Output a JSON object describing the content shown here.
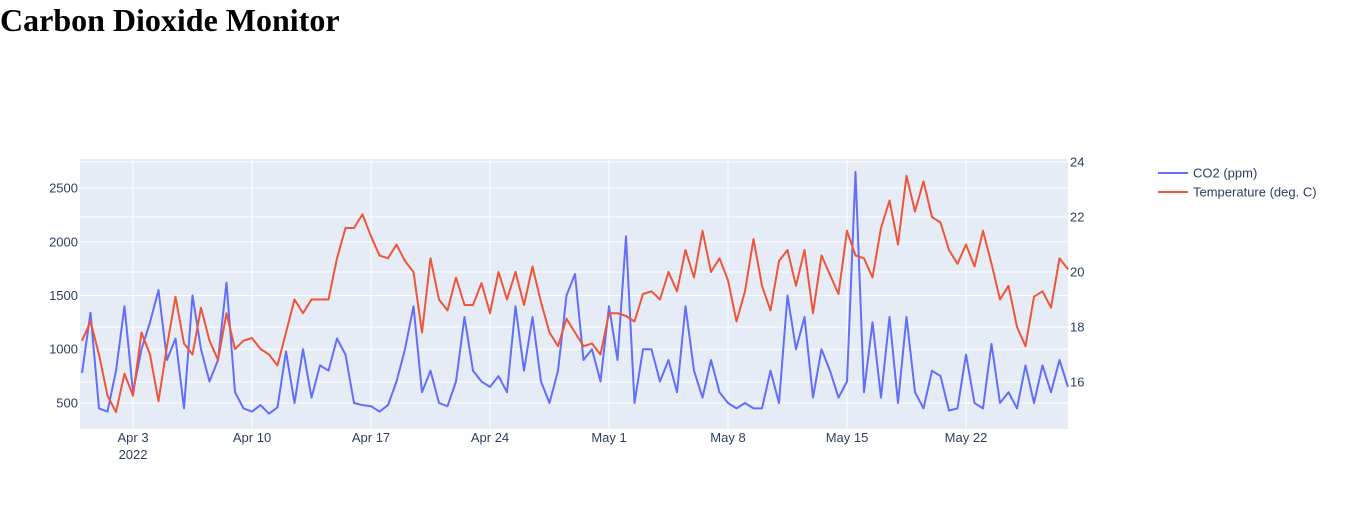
{
  "page": {
    "title": "Carbon Dioxide Monitor"
  },
  "chart_data": {
    "type": "line",
    "title": "",
    "x_start": "2022-03-31",
    "x_step_days": 0.5,
    "x_range_days_from_start": [
      -0.12,
      58.0
    ],
    "xticks": [
      {
        "day": 3,
        "label": "Apr 3",
        "sublabel": "2022"
      },
      {
        "day": 10,
        "label": "Apr 10"
      },
      {
        "day": 17,
        "label": "Apr 17"
      },
      {
        "day": 24,
        "label": "Apr 24"
      },
      {
        "day": 31,
        "label": "May 1"
      },
      {
        "day": 38,
        "label": "May 8"
      },
      {
        "day": 45,
        "label": "May 15"
      },
      {
        "day": 52,
        "label": "May 22"
      }
    ],
    "y_left": {
      "range": [
        258,
        2770
      ],
      "ticks": [
        500,
        1000,
        1500,
        2000,
        2500
      ],
      "tick_labels": [
        "500",
        "1000",
        "1500",
        "2000",
        "2500"
      ]
    },
    "y_right": {
      "range": [
        14.29,
        24.11
      ],
      "ticks": [
        16,
        18,
        20,
        22,
        24
      ],
      "tick_labels": [
        "16",
        "18",
        "20",
        "22",
        "24"
      ]
    },
    "grid": true,
    "legend_position": "top-right-outside",
    "series": [
      {
        "name": "CO2 (ppm)",
        "axis": "left",
        "color": "#636efa",
        "values": [
          780,
          1340,
          450,
          420,
          800,
          1400,
          600,
          1000,
          1250,
          1550,
          900,
          1100,
          450,
          1500,
          1000,
          700,
          900,
          1620,
          600,
          450,
          420,
          480,
          400,
          460,
          980,
          500,
          1000,
          550,
          850,
          800,
          1100,
          950,
          500,
          480,
          470,
          420,
          480,
          700,
          1000,
          1400,
          600,
          800,
          500,
          470,
          700,
          1300,
          800,
          700,
          650,
          750,
          600,
          1400,
          800,
          1300,
          700,
          500,
          800,
          1500,
          1700,
          900,
          1000,
          700,
          1400,
          900,
          2050,
          500,
          1000,
          1000,
          700,
          900,
          600,
          1400,
          800,
          550,
          900,
          600,
          500,
          450,
          500,
          450,
          450,
          800,
          500,
          1500,
          1000,
          1300,
          550,
          1000,
          800,
          550,
          700,
          2650,
          600,
          1250,
          550,
          1300,
          500,
          1300,
          600,
          450,
          800,
          750,
          430,
          450,
          950,
          500,
          450,
          1050,
          500,
          600,
          450,
          850,
          500,
          850,
          600,
          900,
          650
        ]
      },
      {
        "name": "Temperature (deg. C)",
        "axis": "right",
        "color": "#EF553B",
        "values": [
          17.5,
          18.2,
          17.0,
          15.5,
          14.9,
          16.3,
          15.5,
          17.8,
          17.0,
          15.3,
          17.3,
          19.1,
          17.4,
          17.0,
          18.7,
          17.5,
          16.8,
          18.5,
          17.2,
          17.5,
          17.6,
          17.2,
          17.0,
          16.6,
          17.8,
          19.0,
          18.5,
          19.0,
          19.0,
          19.0,
          20.5,
          21.6,
          21.6,
          22.1,
          21.3,
          20.6,
          20.5,
          21.0,
          20.4,
          20.0,
          17.8,
          20.5,
          19.0,
          18.6,
          19.8,
          18.8,
          18.8,
          19.6,
          18.5,
          20.0,
          19.0,
          20.0,
          18.8,
          20.2,
          18.9,
          17.8,
          17.3,
          18.3,
          17.8,
          17.3,
          17.4,
          17.0,
          18.5,
          18.5,
          18.4,
          18.2,
          19.2,
          19.3,
          19.0,
          20.0,
          19.3,
          20.8,
          19.8,
          21.5,
          20.0,
          20.5,
          19.7,
          18.2,
          19.3,
          21.2,
          19.5,
          18.6,
          20.4,
          20.8,
          19.5,
          20.8,
          18.5,
          20.6,
          19.9,
          19.2,
          21.5,
          20.6,
          20.5,
          19.8,
          21.6,
          22.6,
          21.0,
          23.5,
          22.2,
          23.3,
          22.0,
          21.8,
          20.8,
          20.3,
          21.0,
          20.2,
          21.5,
          20.3,
          19.0,
          19.5,
          18.0,
          17.3,
          19.1,
          19.3,
          18.7,
          20.5,
          20.1
        ]
      }
    ]
  }
}
